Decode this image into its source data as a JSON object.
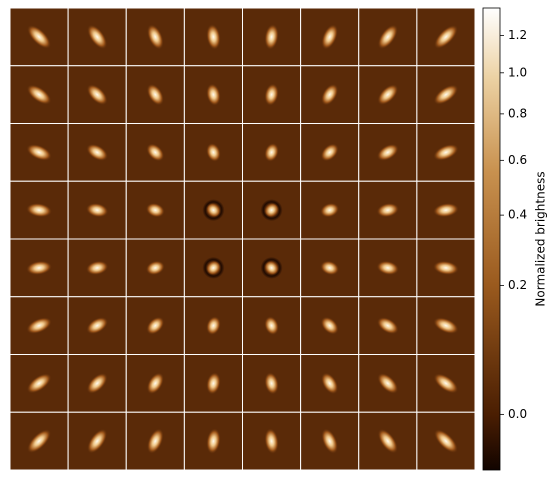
{
  "chart_data": {
    "type": "image_grid",
    "rows": 8,
    "cols": 8,
    "colorbar": {
      "label": "Normalized brightness",
      "scale": "sqrt",
      "clim": [
        -0.02,
        1.36
      ],
      "ticks": [
        {
          "value": 0,
          "label": "0.0"
        },
        0.2,
        0.4,
        0.6,
        0.8,
        {
          "value": 1,
          "label": "1.0"
        },
        1.2
      ]
    }
  }
}
